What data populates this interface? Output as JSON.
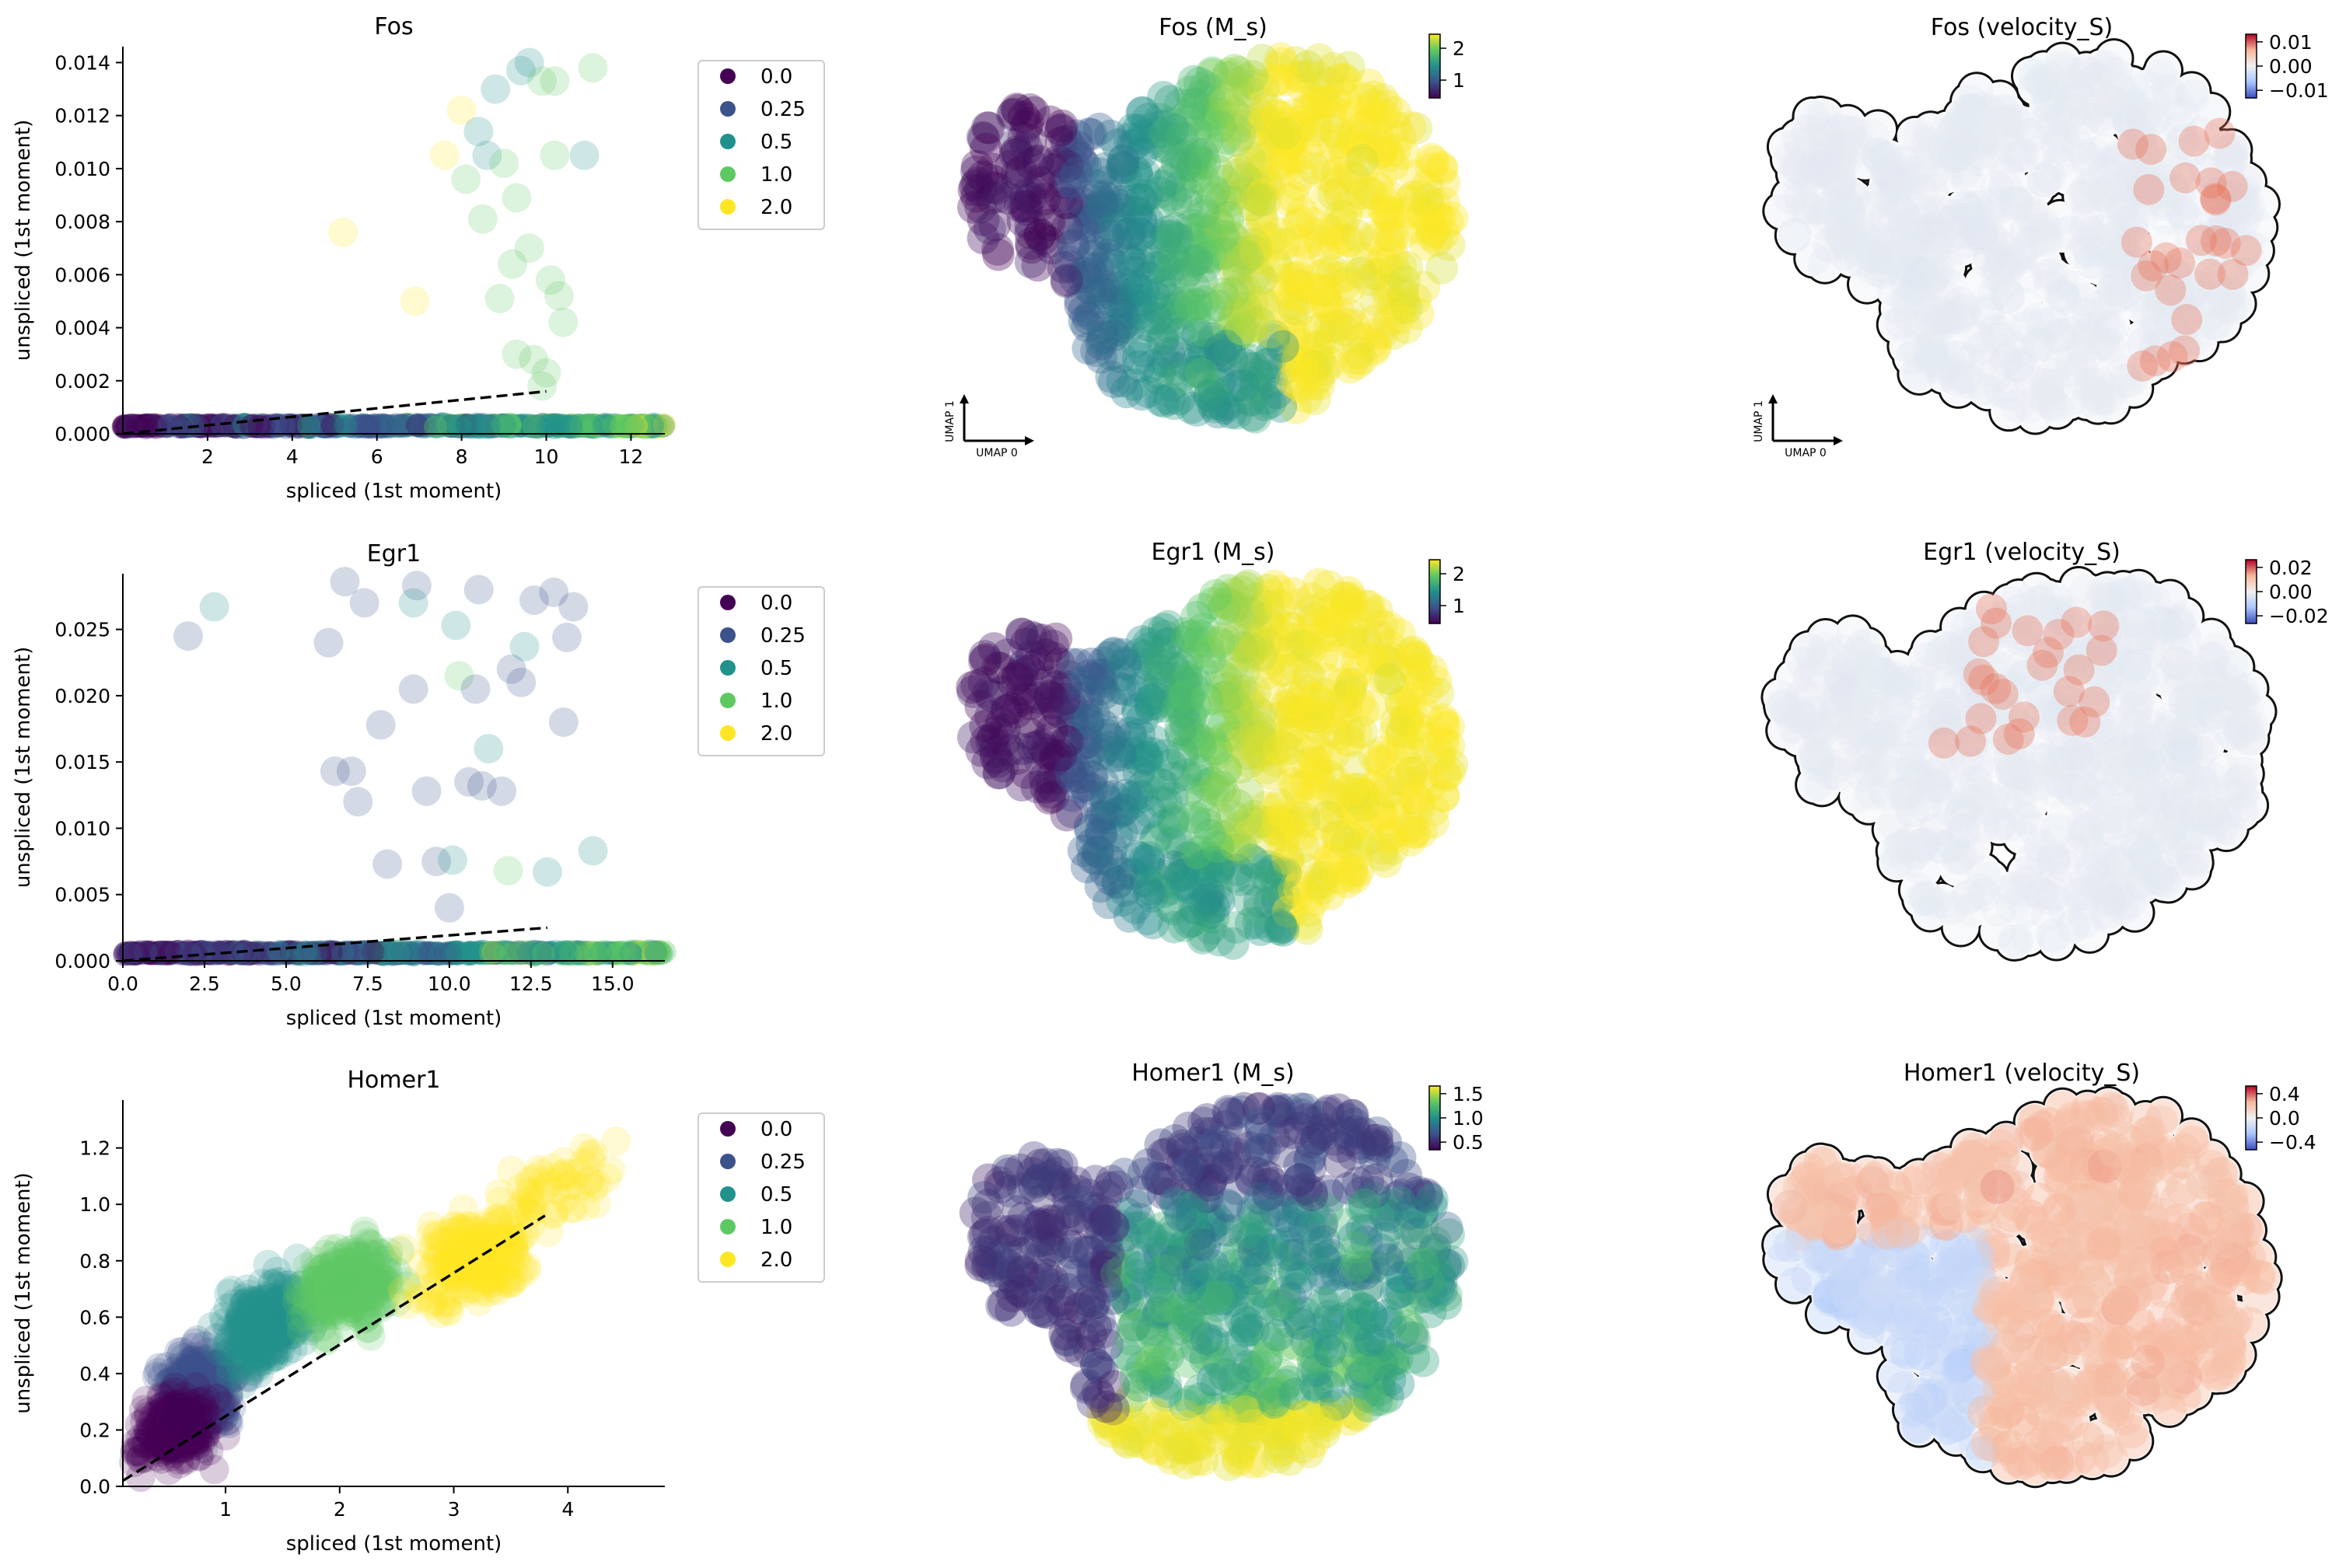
{
  "figure": {
    "legend": {
      "labels": [
        "0.0",
        "0.25",
        "0.5",
        "1.0",
        "2.0"
      ],
      "colors": [
        "#440154",
        "#3b528b",
        "#21918c",
        "#5ec962",
        "#fde725"
      ]
    },
    "umap_axes": {
      "x_label": "UMAP 0",
      "y_label": "UMAP 1"
    },
    "palettes": {
      "viridis": [
        "#440154",
        "#3b528b",
        "#21918c",
        "#5ec962",
        "#fde725"
      ],
      "coolwarm": [
        "#3b4cc0",
        "#aac7fd",
        "#f0f0f0",
        "#f7b89c",
        "#b40426"
      ]
    }
  },
  "chart_data": [
    {
      "id": "fos-phase",
      "type": "scatter",
      "title": "Fos",
      "xlabel": "spliced (1st moment)",
      "ylabel": "unspliced (1st moment)",
      "xlim": [
        0,
        12.8
      ],
      "ylim": [
        0,
        0.0146
      ],
      "x_ticks": [
        2,
        4,
        6,
        8,
        10,
        12
      ],
      "x_tick_labels": [
        "2",
        "4",
        "6",
        "8",
        "10",
        "12"
      ],
      "y_ticks": [
        0,
        0.002,
        0.004,
        0.006,
        0.008,
        0.01,
        0.012,
        0.014
      ],
      "y_tick_labels": [
        "0.000",
        "0.002",
        "0.004",
        "0.006",
        "0.008",
        "0.010",
        "0.012",
        "0.014"
      ],
      "baseline": {
        "y": 0.0003,
        "x_range": [
          0,
          12.8
        ]
      },
      "fit_line": {
        "x": [
          0,
          10
        ],
        "y": [
          0,
          0.0016
        ]
      },
      "points": [
        {
          "x": 5.2,
          "y": 0.0076,
          "c": 4
        },
        {
          "x": 6.9,
          "y": 0.005,
          "c": 4
        },
        {
          "x": 7.6,
          "y": 0.0105,
          "c": 4
        },
        {
          "x": 8.0,
          "y": 0.0122,
          "c": 4
        },
        {
          "x": 8.1,
          "y": 0.0096,
          "c": 3
        },
        {
          "x": 8.6,
          "y": 0.0105,
          "c": 2
        },
        {
          "x": 8.8,
          "y": 0.013,
          "c": 2
        },
        {
          "x": 9.0,
          "y": 0.0102,
          "c": 3
        },
        {
          "x": 9.3,
          "y": 0.0089,
          "c": 3
        },
        {
          "x": 9.4,
          "y": 0.0137,
          "c": 2
        },
        {
          "x": 9.6,
          "y": 0.014,
          "c": 2
        },
        {
          "x": 9.9,
          "y": 0.0133,
          "c": 3
        },
        {
          "x": 8.5,
          "y": 0.0081,
          "c": 3
        },
        {
          "x": 9.2,
          "y": 0.0064,
          "c": 3
        },
        {
          "x": 9.6,
          "y": 0.007,
          "c": 3
        },
        {
          "x": 10.1,
          "y": 0.0058,
          "c": 3
        },
        {
          "x": 10.3,
          "y": 0.0052,
          "c": 3
        },
        {
          "x": 10.4,
          "y": 0.0042,
          "c": 3
        },
        {
          "x": 8.9,
          "y": 0.0051,
          "c": 3
        },
        {
          "x": 9.3,
          "y": 0.003,
          "c": 3
        },
        {
          "x": 9.7,
          "y": 0.0028,
          "c": 3
        },
        {
          "x": 10.0,
          "y": 0.0023,
          "c": 3
        },
        {
          "x": 9.9,
          "y": 0.0018,
          "c": 3
        },
        {
          "x": 10.9,
          "y": 0.0105,
          "c": 2
        },
        {
          "x": 10.2,
          "y": 0.0133,
          "c": 3
        },
        {
          "x": 11.1,
          "y": 0.0138,
          "c": 3
        },
        {
          "x": 8.4,
          "y": 0.0114,
          "c": 2
        },
        {
          "x": 10.2,
          "y": 0.0105,
          "c": 3
        }
      ]
    },
    {
      "id": "egr1-phase",
      "type": "scatter",
      "title": "Egr1",
      "xlabel": "spliced (1st moment)",
      "ylabel": "unspliced (1st moment)",
      "xlim": [
        0,
        16.6
      ],
      "ylim": [
        0,
        0.0292
      ],
      "x_ticks": [
        0,
        2.5,
        5.0,
        7.5,
        10.0,
        12.5,
        15.0
      ],
      "x_tick_labels": [
        "0.0",
        "2.5",
        "5.0",
        "7.5",
        "10.0",
        "12.5",
        "15.0"
      ],
      "y_ticks": [
        0,
        0.005,
        0.01,
        0.015,
        0.02,
        0.025
      ],
      "y_tick_labels": [
        "0.000",
        "0.005",
        "0.010",
        "0.015",
        "0.020",
        "0.025"
      ],
      "baseline": {
        "y": 0.0006,
        "x_range": [
          0,
          16.6
        ]
      },
      "fit_line": {
        "x": [
          0,
          13
        ],
        "y": [
          0,
          0.0025
        ]
      },
      "points": [
        {
          "x": 2.0,
          "y": 0.0245,
          "c": 1
        },
        {
          "x": 2.8,
          "y": 0.0267,
          "c": 2
        },
        {
          "x": 6.3,
          "y": 0.024,
          "c": 1
        },
        {
          "x": 6.5,
          "y": 0.0143,
          "c": 1
        },
        {
          "x": 7.2,
          "y": 0.012,
          "c": 1
        },
        {
          "x": 7.0,
          "y": 0.0143,
          "c": 1
        },
        {
          "x": 7.9,
          "y": 0.0178,
          "c": 1
        },
        {
          "x": 8.1,
          "y": 0.0073,
          "c": 1
        },
        {
          "x": 8.9,
          "y": 0.0205,
          "c": 1
        },
        {
          "x": 9.3,
          "y": 0.0128,
          "c": 1
        },
        {
          "x": 9.6,
          "y": 0.0075,
          "c": 1
        },
        {
          "x": 10.0,
          "y": 0.004,
          "c": 1
        },
        {
          "x": 10.2,
          "y": 0.0253,
          "c": 2
        },
        {
          "x": 10.3,
          "y": 0.0215,
          "c": 3
        },
        {
          "x": 10.6,
          "y": 0.0135,
          "c": 1
        },
        {
          "x": 10.8,
          "y": 0.0205,
          "c": 1
        },
        {
          "x": 11.0,
          "y": 0.0132,
          "c": 1
        },
        {
          "x": 11.2,
          "y": 0.016,
          "c": 2
        },
        {
          "x": 11.6,
          "y": 0.0128,
          "c": 1
        },
        {
          "x": 11.9,
          "y": 0.022,
          "c": 1
        },
        {
          "x": 12.2,
          "y": 0.021,
          "c": 1
        },
        {
          "x": 12.3,
          "y": 0.0237,
          "c": 2
        },
        {
          "x": 13.0,
          "y": 0.0067,
          "c": 2
        },
        {
          "x": 13.5,
          "y": 0.018,
          "c": 1
        },
        {
          "x": 13.6,
          "y": 0.0244,
          "c": 1
        },
        {
          "x": 13.8,
          "y": 0.0267,
          "c": 1
        },
        {
          "x": 14.4,
          "y": 0.0083,
          "c": 2
        },
        {
          "x": 10.9,
          "y": 0.028,
          "c": 1
        },
        {
          "x": 9.0,
          "y": 0.0283,
          "c": 1
        },
        {
          "x": 6.8,
          "y": 0.0286,
          "c": 1
        },
        {
          "x": 11.8,
          "y": 0.0068,
          "c": 3
        },
        {
          "x": 10.1,
          "y": 0.0076,
          "c": 2
        },
        {
          "x": 13.2,
          "y": 0.0278,
          "c": 1
        },
        {
          "x": 12.6,
          "y": 0.0272,
          "c": 1
        },
        {
          "x": 7.4,
          "y": 0.027,
          "c": 1
        },
        {
          "x": 8.9,
          "y": 0.027,
          "c": 2
        }
      ]
    },
    {
      "id": "homer1-phase",
      "type": "scatter",
      "title": "Homer1",
      "xlabel": "spliced (1st moment)",
      "ylabel": "unspliced (1st moment)",
      "xlim": [
        0.1,
        4.85
      ],
      "ylim": [
        0,
        1.37
      ],
      "x_ticks": [
        1,
        2,
        3,
        4
      ],
      "x_tick_labels": [
        "1",
        "2",
        "3",
        "4"
      ],
      "y_ticks": [
        0,
        0.2,
        0.4,
        0.6,
        0.8,
        1.0,
        1.2
      ],
      "y_tick_labels": [
        "0.0",
        "0.2",
        "0.4",
        "0.6",
        "0.8",
        "1.0",
        "1.2"
      ],
      "fit_line": {
        "x": [
          0.1,
          3.8
        ],
        "y": [
          0.02,
          0.96
        ]
      }
    },
    {
      "id": "fos-ms",
      "type": "scatter",
      "title": "Fos (M_s)",
      "colormap": "viridis",
      "cbar_ticks": [
        "2",
        "1"
      ]
    },
    {
      "id": "egr1-ms",
      "type": "scatter",
      "title": "Egr1 (M_s)",
      "colormap": "viridis",
      "cbar_ticks": [
        "2",
        "1"
      ]
    },
    {
      "id": "homer1-ms",
      "type": "scatter",
      "title": "Homer1 (M_s)",
      "colormap": "viridis",
      "cbar_ticks": [
        "1.5",
        "1.0",
        "0.5"
      ]
    },
    {
      "id": "fos-vel",
      "type": "scatter",
      "title": "Fos (velocity_S)",
      "colormap": "coolwarm",
      "cbar_ticks": [
        "0.01",
        "0.00",
        "−0.01"
      ]
    },
    {
      "id": "egr1-vel",
      "type": "scatter",
      "title": "Egr1 (velocity_S)",
      "colormap": "coolwarm",
      "cbar_ticks": [
        "0.02",
        "0.00",
        "−0.02"
      ]
    },
    {
      "id": "homer1-vel",
      "type": "scatter",
      "title": "Homer1 (velocity_S)",
      "colormap": "coolwarm",
      "cbar_ticks": [
        "0.4",
        "0.0",
        "−0.4"
      ]
    }
  ]
}
